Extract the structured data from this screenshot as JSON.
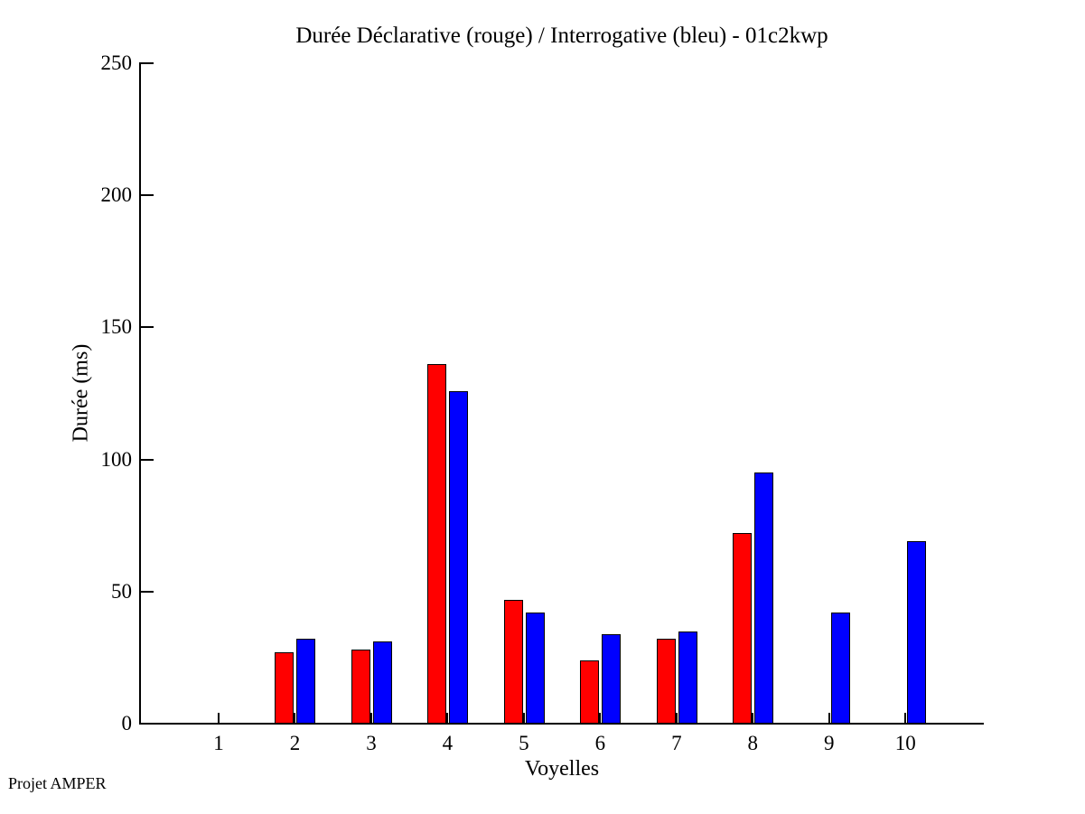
{
  "footer": "Projet AMPER",
  "chart_data": {
    "type": "bar",
    "title": "Durée Déclarative (rouge) / Interrogative (bleu) - 01c2kwp",
    "xlabel": "Voyelles",
    "ylabel": "Durée (ms)",
    "categories": [
      "1",
      "2",
      "3",
      "4",
      "5",
      "6",
      "7",
      "8",
      "9",
      "10"
    ],
    "series": [
      {
        "name": "Déclarative",
        "color": "#ff0000",
        "values": [
          0,
          27,
          28,
          136,
          47,
          24,
          32,
          72,
          0,
          0
        ]
      },
      {
        "name": "Interrogative",
        "color": "#0000ff",
        "values": [
          0,
          32,
          31,
          126,
          42,
          34,
          35,
          95,
          42,
          69
        ]
      }
    ],
    "ylim": [
      0,
      250
    ],
    "yticks": [
      0,
      50,
      100,
      150,
      200,
      250
    ],
    "grid": "off",
    "legend": "none (colors named in title)"
  }
}
